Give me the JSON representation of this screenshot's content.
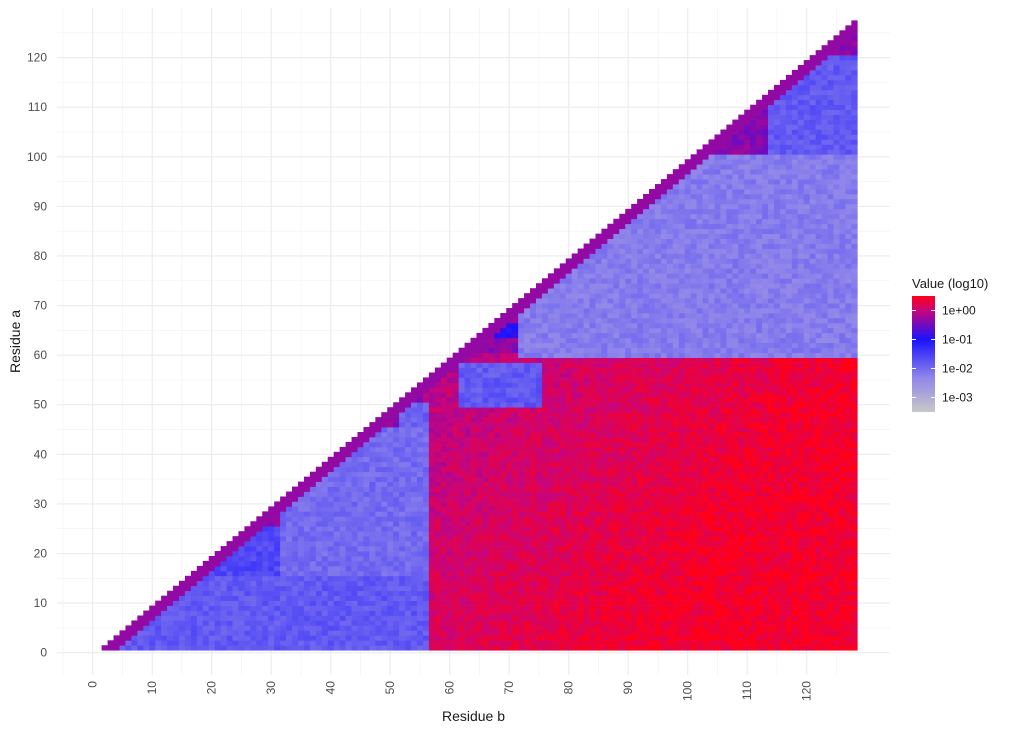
{
  "chart_data": {
    "type": "heatmap",
    "xlabel": "Residue b",
    "ylabel": "Residue a",
    "xlim": [
      -6,
      134
    ],
    "ylim": [
      -4.5,
      130
    ],
    "x_ticks": [
      0,
      10,
      20,
      30,
      40,
      50,
      60,
      70,
      80,
      90,
      100,
      110,
      120
    ],
    "y_ticks": [
      0,
      10,
      20,
      30,
      40,
      50,
      60,
      70,
      80,
      90,
      100,
      110,
      120
    ],
    "x_tick_labels": [
      "0",
      "10",
      "20",
      "30",
      "40",
      "50",
      "60",
      "70",
      "80",
      "90",
      "100",
      "110",
      "120"
    ],
    "y_tick_labels": [
      "0",
      "10",
      "20",
      "30",
      "40",
      "50",
      "60",
      "70",
      "80",
      "90",
      "100",
      "110",
      "120"
    ],
    "grid": true,
    "legend": {
      "title": "Value (log10)",
      "placement": "right",
      "scale": "log10",
      "range": [
        -3.5,
        0.5
      ],
      "breaks": [
        0,
        -1,
        -2,
        -3
      ],
      "break_labels": [
        "1e+00",
        "1e-01",
        "1e-02",
        "1e-03"
      ],
      "colors": [
        {
          "at": -3.5,
          "color": "#c8c8c8"
        },
        {
          "at": -2.3,
          "color": "#8f85ea"
        },
        {
          "at": -1.0,
          "color": "#1a12ff"
        },
        {
          "at": 0.0,
          "color": "#c7057c"
        },
        {
          "at": 0.5,
          "color": "#ff0018"
        }
      ]
    },
    "cells": {
      "domain": "upper triangle, residue a from 1 to 127, residue b from a+1 to 128",
      "residues": 128,
      "value_units": "log10(value)",
      "diagonal_band": {
        "width_residues": 3,
        "log10_value": -0.3
      },
      "regions": [
        {
          "a": [
            1,
            15
          ],
          "b": [
            2,
            56
          ],
          "log10_value": -1.8
        },
        {
          "a": [
            1,
            45
          ],
          "b": [
            32,
            56
          ],
          "log10_value": -2.0
        },
        {
          "a": [
            15,
            25
          ],
          "b": [
            15,
            40
          ],
          "log10_value": -1.6
        },
        {
          "a": [
            25,
            45
          ],
          "b": [
            42,
            56
          ],
          "log10_value": -2.2
        },
        {
          "a": [
            44,
            50
          ],
          "b": [
            52,
            56
          ],
          "log10_value": -1.9
        },
        {
          "a": [
            50,
            58
          ],
          "b": [
            62,
            75
          ],
          "log10_value": -1.9
        },
        {
          "a": [
            60,
            100
          ],
          "b": [
            72,
            128
          ],
          "log10_value": -2.2
        },
        {
          "a": [
            64,
            66
          ],
          "b": [
            56,
            128
          ],
          "log10_value": -1.0
        },
        {
          "a": [
            100,
            120
          ],
          "b": [
            114,
            128
          ],
          "log10_value": -1.8
        },
        {
          "a": [
            103,
            106
          ],
          "b": [
            105,
            128
          ],
          "log10_value": -0.4
        },
        {
          "a": [
            0,
            60
          ],
          "b": [
            56,
            128
          ],
          "log10_value": -0.1
        }
      ]
    }
  }
}
